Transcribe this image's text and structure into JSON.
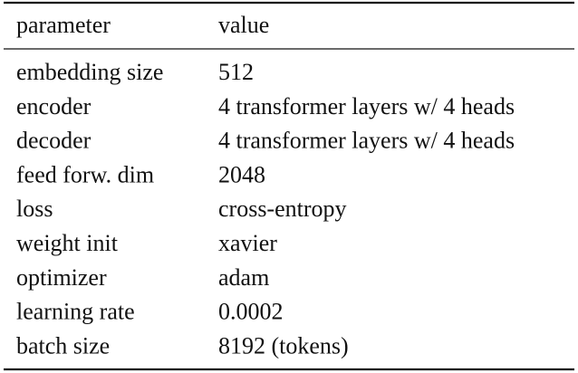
{
  "table": {
    "header": [
      "parameter",
      "value"
    ],
    "rows": [
      [
        "embedding size",
        "512"
      ],
      [
        "encoder",
        "4 transformer layers w/ 4 heads"
      ],
      [
        "decoder",
        "4 transformer layers w/ 4 heads"
      ],
      [
        "feed forw. dim",
        "2048"
      ],
      [
        "loss",
        "cross-entropy"
      ],
      [
        "weight init",
        "xavier"
      ],
      [
        "optimizer",
        "adam"
      ],
      [
        "learning rate",
        "0.0002"
      ],
      [
        "batch size",
        "8192 (tokens)"
      ]
    ]
  }
}
